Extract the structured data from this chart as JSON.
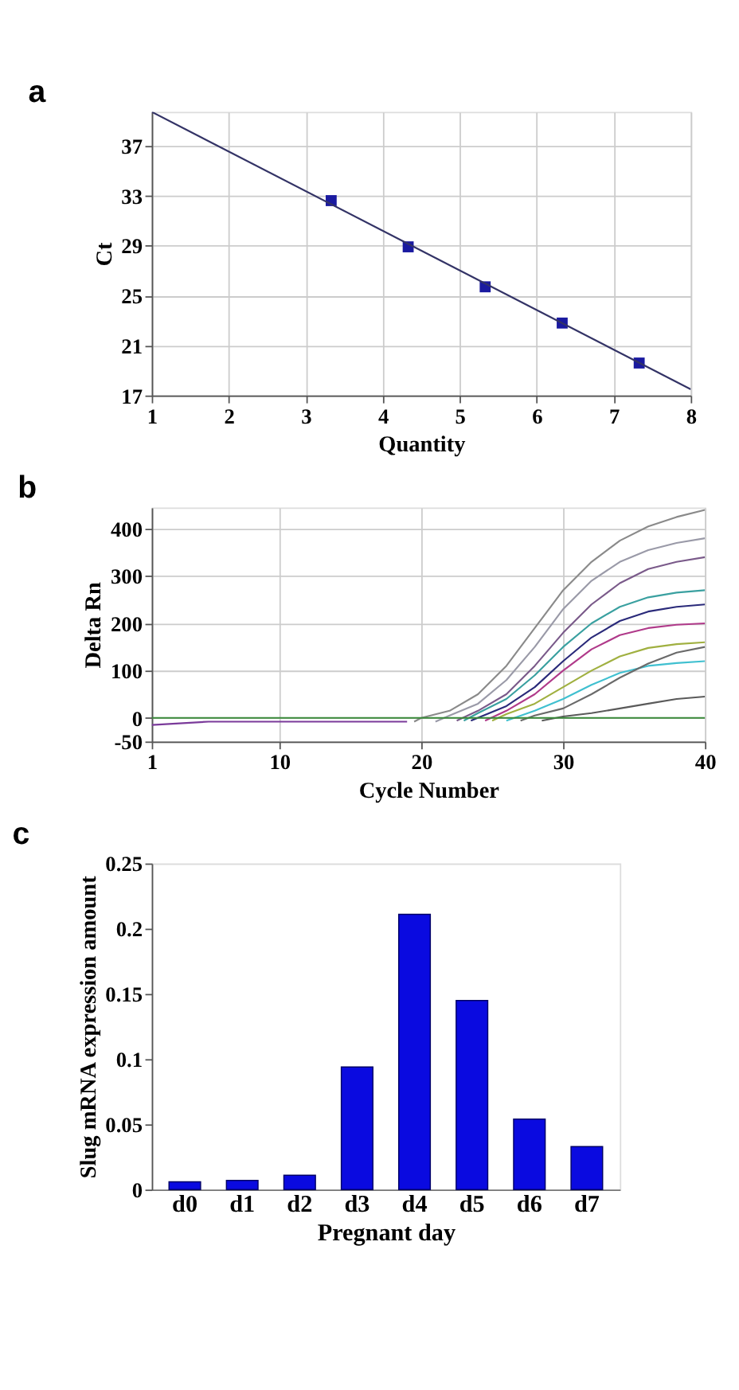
{
  "chart_data": [
    {
      "type": "scatter",
      "title": "a",
      "xlabel": "Quantity",
      "ylabel": "Ct",
      "xlim": [
        1,
        8
      ],
      "ylim": [
        17,
        39.7
      ],
      "xticks": [
        1,
        2,
        3,
        4,
        5,
        6,
        7,
        8
      ],
      "yticks": [
        17,
        21,
        25,
        29,
        33,
        37
      ],
      "grid": true,
      "series": [
        {
          "type": "scatter",
          "marker": "square",
          "color": "#1a1aa0",
          "x": [
            3.33,
            4.33,
            5.33,
            6.33,
            7.33
          ],
          "values": [
            32.6,
            28.9,
            25.7,
            22.8,
            19.6
          ]
        },
        {
          "type": "line",
          "color": "#333366",
          "x": [
            1,
            8
          ],
          "values": [
            39.7,
            17.5
          ]
        }
      ]
    },
    {
      "type": "line",
      "title": "b",
      "xlabel": "Cycle Number",
      "ylabel": "Delta Rn",
      "xlim": [
        1,
        40
      ],
      "ylim": [
        -50,
        445
      ],
      "xticks": [
        1,
        10,
        20,
        30,
        40
      ],
      "yticks": [
        -50,
        0,
        100,
        200,
        300,
        400
      ],
      "grid": true,
      "series": [
        {
          "color": "#7a3a9a",
          "x": [
            1,
            5,
            10,
            15,
            19
          ],
          "values": [
            -15,
            -8,
            -8,
            -8,
            -8
          ]
        },
        {
          "color": "#8a8a8a",
          "x": [
            19.5,
            20,
            22,
            24,
            26,
            28,
            30,
            32,
            34,
            36,
            38,
            40
          ],
          "values": [
            -8,
            0,
            15,
            50,
            110,
            190,
            270,
            330,
            375,
            405,
            425,
            440
          ]
        },
        {
          "color": "#9a9aa8",
          "x": [
            21,
            22,
            24,
            26,
            28,
            30,
            32,
            34,
            36,
            38,
            40
          ],
          "values": [
            -8,
            5,
            30,
            80,
            150,
            230,
            290,
            330,
            355,
            370,
            380
          ]
        },
        {
          "color": "#7a5a8a",
          "x": [
            22.5,
            24,
            26,
            28,
            30,
            32,
            34,
            36,
            38,
            40
          ],
          "values": [
            -6,
            15,
            50,
            110,
            180,
            240,
            285,
            315,
            330,
            340
          ]
        },
        {
          "color": "#3aa0a0",
          "x": [
            23,
            24,
            26,
            28,
            30,
            32,
            34,
            36,
            38,
            40
          ],
          "values": [
            -6,
            10,
            40,
            90,
            150,
            200,
            235,
            255,
            265,
            270
          ]
        },
        {
          "color": "#2a2a7a",
          "x": [
            23.5,
            26,
            28,
            30,
            32,
            34,
            36,
            38,
            40
          ],
          "values": [
            -6,
            25,
            65,
            120,
            170,
            205,
            225,
            235,
            240
          ]
        },
        {
          "color": "#b03a8a",
          "x": [
            24.5,
            26,
            28,
            30,
            32,
            34,
            36,
            38,
            40
          ],
          "values": [
            -6,
            15,
            50,
            100,
            145,
            175,
            190,
            197,
            200
          ]
        },
        {
          "color": "#a0b040",
          "x": [
            25,
            26,
            28,
            30,
            32,
            34,
            36,
            38,
            40
          ],
          "values": [
            -6,
            8,
            30,
            65,
            100,
            130,
            148,
            156,
            160
          ]
        },
        {
          "color": "#40c0d0",
          "x": [
            26,
            28,
            30,
            32,
            34,
            36,
            38,
            40
          ],
          "values": [
            -6,
            15,
            40,
            70,
            95,
            110,
            116,
            120
          ]
        },
        {
          "color": "#6a6a6a",
          "x": [
            27,
            28,
            30,
            32,
            34,
            36,
            38,
            40
          ],
          "values": [
            -6,
            5,
            20,
            50,
            85,
            115,
            138,
            150
          ]
        },
        {
          "color": "#5a5a5a",
          "x": [
            28.5,
            30,
            32,
            34,
            36,
            38,
            40
          ],
          "values": [
            -6,
            3,
            10,
            20,
            30,
            40,
            45
          ]
        },
        {
          "color": "#3a8a3a",
          "x": [
            1,
            40
          ],
          "values": [
            0,
            0
          ]
        }
      ]
    },
    {
      "type": "bar",
      "title": "c",
      "xlabel": "Pregnant day",
      "ylabel": "Slug mRNA expression amount",
      "categories": [
        "d0",
        "d1",
        "d2",
        "d3",
        "d4",
        "d5",
        "d6",
        "d7"
      ],
      "values": [
        0.006,
        0.007,
        0.011,
        0.094,
        0.211,
        0.145,
        0.054,
        0.033
      ],
      "color": "#0a0ae0",
      "ylim": [
        0,
        0.25
      ],
      "yticks": [
        0,
        0.05,
        0.1,
        0.15,
        0.2,
        0.25
      ]
    }
  ]
}
